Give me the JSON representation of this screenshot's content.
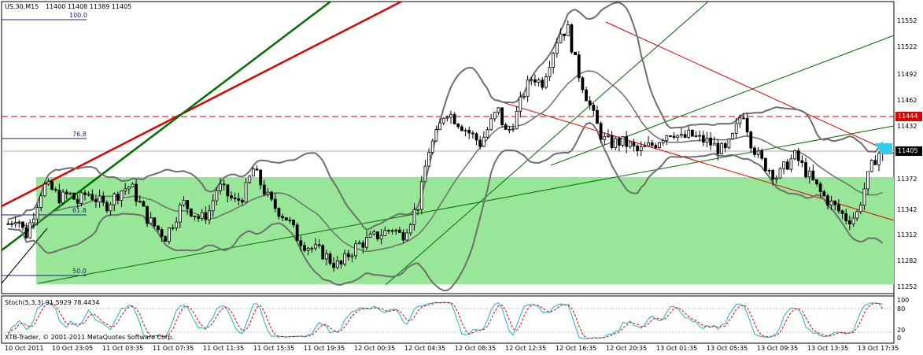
{
  "header": {
    "symbol_tf": "US.30,M15",
    "ohlc": "11400 11408 11389 11405"
  },
  "fib_levels": [
    "100.0",
    "76.8",
    "61.8",
    "50.0"
  ],
  "price_axis": {
    "ticks": [
      "11552",
      "11522",
      "11492",
      "11462",
      "11432",
      "11402",
      "11372",
      "11342",
      "11312",
      "11282",
      "11252"
    ],
    "tag_line": "11444",
    "tag_current": "11405"
  },
  "indicator": {
    "label": "Stoch(5,3,3) 91.5929 78.4434",
    "ticks": [
      "100",
      "80",
      "20",
      "0"
    ]
  },
  "copyright": "XTB-Trader, © 2001-2011 MetaQuotes Software Corp.",
  "time_axis": [
    "10 Oct 2011",
    "10 Oct 23:05",
    "11 Oct 03:35",
    "11 Oct 07:35",
    "11 Oct 11:35",
    "11 Oct 15:35",
    "11 Oct 19:35",
    "12 Oct 00:35",
    "12 Oct 04:35",
    "12 Oct 08:35",
    "12 Oct 12:35",
    "12 Oct 16:35",
    "12 Oct 20:35",
    "13 Oct 01:35",
    "13 Oct 05:35",
    "13 Oct 09:35",
    "13 Oct 13:35",
    "13 Oct 17:35"
  ],
  "colors": {
    "zone": "#98e698",
    "bollinger": "#6e6e6e",
    "trend_red": "#e00000",
    "trend_green": "#007000",
    "stoch_main": "#20b2c8",
    "stoch_signal": "#e00000",
    "tag_line_bg": "#e00000",
    "tag_current_bg": "#000000"
  },
  "chart_data": {
    "type": "candlestick",
    "symbol": "US.30",
    "timeframe": "M15",
    "last_bar": {
      "open": 11400,
      "high": 11408,
      "low": 11389,
      "close": 11405
    },
    "ylim": [
      11240,
      11570
    ],
    "horizontal_level": 11444,
    "price_path": [
      11315,
      11325,
      11300,
      11330,
      11360,
      11355,
      11345,
      11350,
      11340,
      11352,
      11345,
      11335,
      11345,
      11355,
      11360,
      11340,
      11320,
      11310,
      11300,
      11320,
      11340,
      11330,
      11320,
      11330,
      11360,
      11350,
      11340,
      11350,
      11380,
      11360,
      11340,
      11330,
      11320,
      11300,
      11290,
      11285,
      11280,
      11270,
      11265,
      11280,
      11290,
      11295,
      11300,
      11305,
      11310,
      11300,
      11320,
      11340,
      11400,
      11420,
      11450,
      11440,
      11430,
      11420,
      11410,
      11430,
      11450,
      11420,
      11440,
      11470,
      11490,
      11480,
      11510,
      11540,
      11545,
      11500,
      11470,
      11440,
      11415,
      11410,
      11412,
      11408,
      11400,
      11405,
      11410,
      11420,
      11425,
      11415,
      11420,
      11415,
      11412,
      11405,
      11400,
      11420,
      11450,
      11410,
      11390,
      11380,
      11370,
      11385,
      11395,
      11380,
      11365,
      11350,
      11340,
      11330,
      11320,
      11325,
      11360,
      11390,
      11405
    ],
    "stoch": {
      "main": 91.5929,
      "signal": 78.4434
    }
  }
}
